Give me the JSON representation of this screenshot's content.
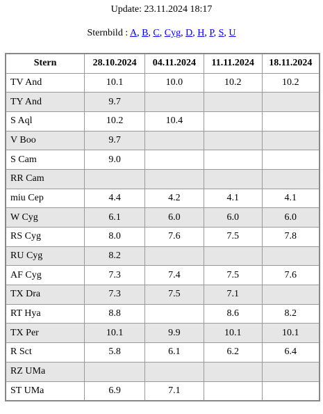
{
  "header": {
    "update": "Update: 23.11.2024 18:17",
    "sternbild_label": "Sternbild :",
    "link_separator": ", ",
    "links": [
      "A",
      "B",
      "C",
      "Cyg",
      "D",
      "H",
      "P",
      "S",
      "U"
    ]
  },
  "table": {
    "columns": [
      "Stern",
      "28.10.2024",
      "04.11.2024",
      "11.11.2024",
      "18.11.2024"
    ],
    "rows": [
      [
        "TV And",
        "10.1",
        "10.0",
        "10.2",
        "10.2"
      ],
      [
        "TY And",
        "9.7",
        null,
        null,
        null
      ],
      [
        "S Aql",
        "10.2",
        "10.4",
        null,
        null
      ],
      [
        "V Boo",
        "9.7",
        null,
        null,
        null
      ],
      [
        "S Cam",
        "9.0",
        null,
        null,
        null
      ],
      [
        "RR Cam",
        null,
        null,
        null,
        null
      ],
      [
        "miu Cep",
        "4.4",
        "4.2",
        "4.1",
        "4.1"
      ],
      [
        "W Cyg",
        "6.1",
        "6.0",
        "6.0",
        "6.0"
      ],
      [
        "RS Cyg",
        "8.0",
        "7.6",
        "7.5",
        "7.8"
      ],
      [
        "RU Cyg",
        "8.2",
        null,
        null,
        null
      ],
      [
        "AF Cyg",
        "7.3",
        "7.4",
        "7.5",
        "7.6"
      ],
      [
        "TX Dra",
        "7.3",
        "7.5",
        "7.1",
        null
      ],
      [
        "RT Hya",
        "8.8",
        null,
        "8.6",
        "8.2"
      ],
      [
        "TX Per",
        "10.1",
        "9.9",
        "10.1",
        "10.1"
      ],
      [
        "R Sct",
        "5.8",
        "6.1",
        "6.2",
        "6.4"
      ],
      [
        "RZ UMa",
        null,
        null,
        null,
        null
      ],
      [
        "ST UMa",
        "6.9",
        "7.1",
        null,
        null
      ]
    ]
  }
}
